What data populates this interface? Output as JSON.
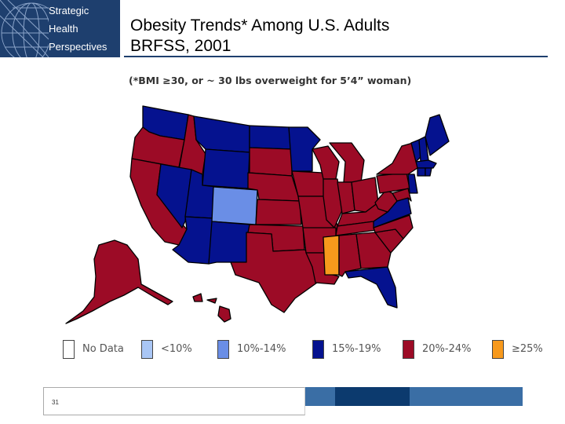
{
  "logo": {
    "lines": [
      "Strategic",
      "Health",
      "Perspectives"
    ]
  },
  "header": {
    "title_line1": "Obesity Trends* Among U.S. Adults",
    "title_line2": "BRFSS, 2001"
  },
  "subtitle": "(*BMI ≥30, or ~ 30 lbs overweight for 5’4” woman)",
  "colors": {
    "no_data": "#ffffff",
    "lt10": "#a9c6f5",
    "c10_14": "#6a8ee6",
    "c15_19": "#05128f",
    "c20_24": "#9c0b26",
    "ge25": "#f7991c"
  },
  "map": {
    "state_groups": {
      "c15_19": [
        "WA",
        "MT",
        "ND",
        "MN",
        "WY",
        "UT",
        "NV",
        "AZ",
        "NM",
        "VT",
        "NH",
        "ME",
        "MA",
        "CT",
        "RI",
        "NJ",
        "VA",
        "FL"
      ],
      "c10_14": [
        "CO"
      ],
      "ge25": [
        "MS"
      ]
    }
  },
  "legend": [
    {
      "label": "No Data",
      "color_key": "no_data"
    },
    {
      "label": "<10%",
      "color_key": "lt10"
    },
    {
      "label": "10%-14%",
      "color_key": "c10_14"
    },
    {
      "label": "15%-19%",
      "color_key": "c15_19"
    },
    {
      "label": "20%-24%",
      "color_key": "c20_24"
    },
    {
      "label": "≥25%",
      "color_key": "ge25"
    }
  ],
  "footer": {
    "page_number": "31"
  }
}
